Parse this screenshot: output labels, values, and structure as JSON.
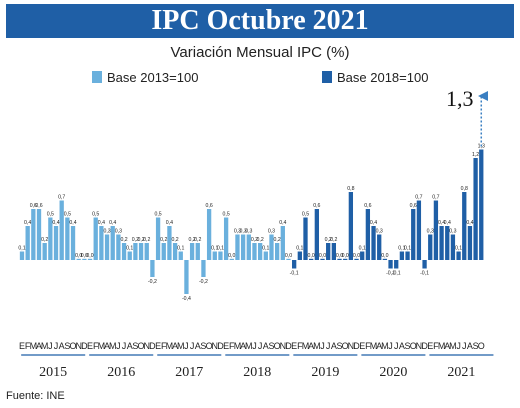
{
  "header": {
    "title": "IPC Octubre 2021",
    "subtitle": "Variación Mensual IPC (%)",
    "source": "Fuente: INE"
  },
  "legend": {
    "base_2013": "Base 2013=100",
    "base_2018": "Base 2018=100"
  },
  "callout": {
    "value": "1,3"
  },
  "colors": {
    "banner": "#1f5fa6",
    "base_2013": "#6ab0dd",
    "base_2018": "#1f5fa6",
    "arrow": "#3a7fc2"
  },
  "chart_data": {
    "type": "bar",
    "title": "Variación Mensual IPC (%)",
    "month_letters": [
      "E",
      "F",
      "M",
      "A",
      "M",
      "J",
      "J",
      "A",
      "S",
      "O",
      "N",
      "D"
    ],
    "years": [
      {
        "year": "2015",
        "base": "Base 2013=100",
        "values": [
          0.1,
          0.4,
          0.6,
          0.6,
          0.2,
          0.5,
          0.4,
          0.7,
          0.5,
          0.4,
          0.0,
          0.0
        ]
      },
      {
        "year": "2016",
        "base": "Base 2013=100",
        "values": [
          0.0,
          0.5,
          0.4,
          0.3,
          0.4,
          0.3,
          0.2,
          0.1,
          0.2,
          0.2,
          0.2,
          -0.2
        ]
      },
      {
        "year": "2017",
        "base": "Base 2013=100",
        "values": [
          0.5,
          0.2,
          0.4,
          0.2,
          0.1,
          -0.4,
          0.2,
          0.2,
          -0.2,
          0.6,
          0.1,
          0.1
        ]
      },
      {
        "year": "2018",
        "base": "Base 2013=100",
        "values": [
          0.5,
          0.0,
          0.3,
          0.3,
          0.3,
          0.2,
          0.2,
          0.1,
          0.3,
          0.2,
          0.4,
          0.0
        ]
      },
      {
        "year": "2019",
        "base": "Base 2018=100",
        "values": [
          -0.1,
          0.1,
          0.5,
          0.0,
          0.6,
          0.0,
          0.2,
          0.2,
          0.0,
          0.0,
          0.8,
          0.0
        ]
      },
      {
        "year": "2020",
        "base": "Base 2018=100",
        "values": [
          0.1,
          0.6,
          0.4,
          0.3,
          0.0,
          -0.1,
          -0.1,
          0.1,
          0.1,
          0.6,
          0.7,
          -0.1
        ]
      },
      {
        "year": "2021",
        "base": "Base 2018=100",
        "values": [
          0.3,
          0.7,
          0.4,
          0.4,
          0.3,
          0.1,
          0.8,
          0.4,
          1.2,
          1.3
        ]
      }
    ],
    "value_labels": {
      "2015": [
        "0,1",
        "0,4",
        "0,6",
        "0,6",
        "0,2",
        "0,5",
        "0,4",
        "0,7",
        "0,5",
        "0,4",
        "0,0",
        "0,0"
      ],
      "2016": [
        "0,0",
        "0,5",
        "0,4",
        "0,3",
        "0,4",
        "0,3",
        "0,2",
        "0,1",
        "0,2",
        "0,2",
        "0,2",
        "-0,2"
      ],
      "2017": [
        "0,5",
        "0,2",
        "0,4",
        "0,2",
        "0,1",
        "-0,4",
        "0,2",
        "0,2",
        "-0,2",
        "0,6",
        "0,1",
        "0,1"
      ],
      "2018": [
        "0,5",
        "0,0",
        "0,3",
        "0,3",
        "0,3",
        "0,2",
        "0,2",
        "0,1",
        "0,3",
        "0,2",
        "0,4",
        "0,0"
      ],
      "2019": [
        "-0,1",
        "0,1",
        "0,5",
        "0,0",
        "0,6",
        "0,0",
        "0,2",
        "0,2",
        "0,0",
        "0,0",
        "0,8",
        "0,0"
      ],
      "2020": [
        "0,1",
        "0,6",
        "0,4",
        "0,3",
        "0,0",
        "-0,1",
        "-0,1",
        "0,1",
        "0,1",
        "0,6",
        "0,7",
        "-0,1"
      ],
      "2021": [
        "0,3",
        "0,7",
        "0,4",
        "0,4",
        "0,3",
        "0,1",
        "0,8",
        "0,4",
        "1,2",
        "1,3"
      ]
    },
    "series": [
      {
        "name": "Base 2013=100",
        "years": [
          "2015",
          "2016",
          "2017",
          "2018"
        ]
      },
      {
        "name": "Base 2018=100",
        "years": [
          "2019",
          "2020",
          "2021"
        ]
      }
    ],
    "ylim": [
      -0.5,
      1.4
    ],
    "grid": false,
    "legend_position": "top"
  }
}
